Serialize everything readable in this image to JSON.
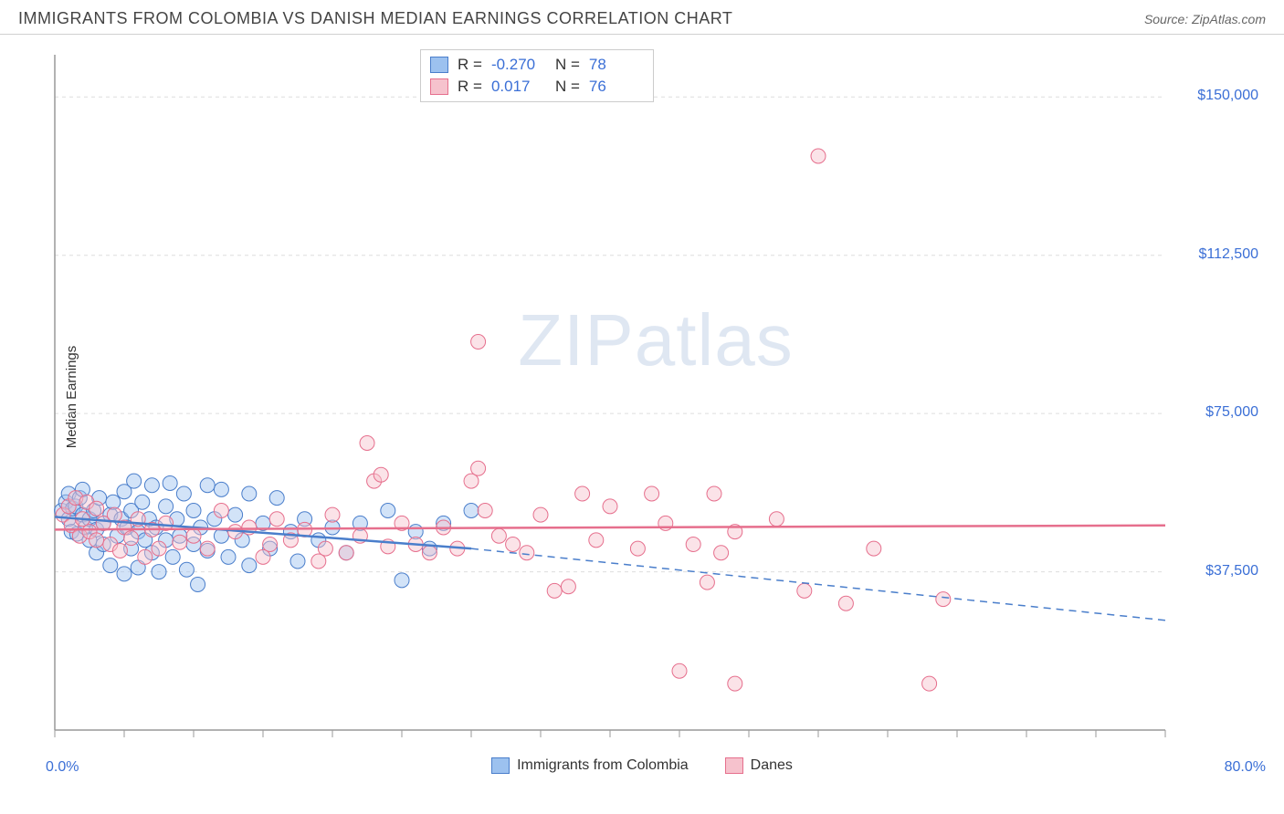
{
  "header": {
    "title": "IMMIGRANTS FROM COLOMBIA VS DANISH MEDIAN EARNINGS CORRELATION CHART",
    "source": "Source: ZipAtlas.com"
  },
  "watermark": {
    "zip": "ZIP",
    "atlas": "atlas"
  },
  "chart": {
    "type": "scatter",
    "ylabel": "Median Earnings",
    "background_color": "#ffffff",
    "grid_color": "#dddddd",
    "axis_color": "#999999",
    "label_color": "#3b6fd6",
    "xlim": [
      0,
      80
    ],
    "ylim": [
      0,
      160000
    ],
    "x_tick_step": 5,
    "x_labels": {
      "min": "0.0%",
      "max": "80.0%"
    },
    "y_ticks": [
      {
        "v": 37500,
        "label": "$37,500"
      },
      {
        "v": 75000,
        "label": "$75,000"
      },
      {
        "v": 112500,
        "label": "$112,500"
      },
      {
        "v": 150000,
        "label": "$150,000"
      }
    ],
    "marker_radius": 8,
    "marker_opacity": 0.45,
    "top_legend": {
      "rows": [
        {
          "swatch_fill": "#9cc1ef",
          "swatch_stroke": "#4a7ecb",
          "r_label": "R =",
          "r_value": "-0.270",
          "n_label": "N =",
          "n_value": "78"
        },
        {
          "swatch_fill": "#f6c2cd",
          "swatch_stroke": "#e66f8d",
          "r_label": "R =",
          "r_value": " 0.017",
          "n_label": "N =",
          "n_value": "76"
        }
      ]
    },
    "bottom_legend": {
      "items": [
        {
          "label": "Immigrants from Colombia",
          "fill": "#9cc1ef",
          "stroke": "#4a7ecb"
        },
        {
          "label": "Danes",
          "fill": "#f6c2cd",
          "stroke": "#e66f8d"
        }
      ]
    },
    "series": [
      {
        "name": "Immigrants from Colombia",
        "color_fill": "#9cc1ef",
        "color_stroke": "#4a7ecb",
        "trend": {
          "solid_to_x": 30,
          "y_start": 50500,
          "y_at_solid_end": 43000,
          "y_end": 26000,
          "width": 2.5
        },
        "points": [
          [
            0.5,
            52000
          ],
          [
            0.8,
            54000
          ],
          [
            1,
            50000
          ],
          [
            1,
            56000
          ],
          [
            1.2,
            47000
          ],
          [
            1.3,
            52500
          ],
          [
            1.5,
            53000
          ],
          [
            1.6,
            46500
          ],
          [
            1.8,
            55000
          ],
          [
            2,
            51000
          ],
          [
            2,
            57000
          ],
          [
            2.2,
            48000
          ],
          [
            2.5,
            45000
          ],
          [
            2.5,
            50000
          ],
          [
            2.8,
            52000
          ],
          [
            3,
            47500
          ],
          [
            3,
            42000
          ],
          [
            3.2,
            55000
          ],
          [
            3.5,
            49000
          ],
          [
            3.5,
            44000
          ],
          [
            4,
            51000
          ],
          [
            4,
            39000
          ],
          [
            4.2,
            54000
          ],
          [
            4.5,
            46000
          ],
          [
            4.8,
            50000
          ],
          [
            5,
            56500
          ],
          [
            5,
            37000
          ],
          [
            5.2,
            48000
          ],
          [
            5.5,
            52000
          ],
          [
            5.5,
            43000
          ],
          [
            5.7,
            59000
          ],
          [
            6,
            47000
          ],
          [
            6,
            38500
          ],
          [
            6.3,
            54000
          ],
          [
            6.5,
            45000
          ],
          [
            6.8,
            50000
          ],
          [
            7,
            58000
          ],
          [
            7,
            42000
          ],
          [
            7.3,
            48000
          ],
          [
            7.5,
            37500
          ],
          [
            8,
            53000
          ],
          [
            8,
            45000
          ],
          [
            8.3,
            58500
          ],
          [
            8.5,
            41000
          ],
          [
            8.8,
            50000
          ],
          [
            9,
            46000
          ],
          [
            9.3,
            56000
          ],
          [
            9.5,
            38000
          ],
          [
            10,
            52000
          ],
          [
            10,
            44000
          ],
          [
            10.3,
            34500
          ],
          [
            10.5,
            48000
          ],
          [
            11,
            58000
          ],
          [
            11,
            42500
          ],
          [
            11.5,
            50000
          ],
          [
            12,
            46000
          ],
          [
            12,
            57000
          ],
          [
            12.5,
            41000
          ],
          [
            13,
            51000
          ],
          [
            13.5,
            45000
          ],
          [
            14,
            56000
          ],
          [
            14,
            39000
          ],
          [
            15,
            49000
          ],
          [
            15.5,
            43000
          ],
          [
            16,
            55000
          ],
          [
            17,
            47000
          ],
          [
            17.5,
            40000
          ],
          [
            18,
            50000
          ],
          [
            19,
            45000
          ],
          [
            20,
            48000
          ],
          [
            21,
            42000
          ],
          [
            22,
            49000
          ],
          [
            24,
            52000
          ],
          [
            25,
            35500
          ],
          [
            26,
            47000
          ],
          [
            27,
            43000
          ],
          [
            28,
            49000
          ],
          [
            30,
            52000
          ]
        ]
      },
      {
        "name": "Danes",
        "color_fill": "#f6c2cd",
        "color_stroke": "#e66f8d",
        "trend": {
          "solid_to_x": 80,
          "y_start": 47500,
          "y_at_solid_end": 48500,
          "y_end": 48500,
          "width": 2.5
        },
        "points": [
          [
            0.6,
            51000
          ],
          [
            1,
            53000
          ],
          [
            1.2,
            48500
          ],
          [
            1.5,
            55000
          ],
          [
            1.8,
            46000
          ],
          [
            2,
            50000
          ],
          [
            2.3,
            54000
          ],
          [
            2.5,
            47000
          ],
          [
            3,
            45000
          ],
          [
            3,
            52500
          ],
          [
            3.5,
            49000
          ],
          [
            4,
            44000
          ],
          [
            4.3,
            51000
          ],
          [
            4.7,
            42500
          ],
          [
            5,
            48000
          ],
          [
            5.5,
            45500
          ],
          [
            6,
            50000
          ],
          [
            6.5,
            41000
          ],
          [
            7,
            47500
          ],
          [
            7.5,
            43000
          ],
          [
            8,
            49000
          ],
          [
            9,
            44500
          ],
          [
            10,
            46000
          ],
          [
            11,
            43000
          ],
          [
            12,
            52000
          ],
          [
            13,
            47000
          ],
          [
            14,
            48000
          ],
          [
            15,
            41000
          ],
          [
            15.5,
            44000
          ],
          [
            16,
            50000
          ],
          [
            17,
            45000
          ],
          [
            18,
            47500
          ],
          [
            19,
            40000
          ],
          [
            19.5,
            43000
          ],
          [
            20,
            51000
          ],
          [
            21,
            42000
          ],
          [
            22,
            46000
          ],
          [
            22.5,
            68000
          ],
          [
            23,
            59000
          ],
          [
            23.5,
            60500
          ],
          [
            24,
            43500
          ],
          [
            25,
            49000
          ],
          [
            26,
            44000
          ],
          [
            27,
            42000
          ],
          [
            28,
            48000
          ],
          [
            29,
            43000
          ],
          [
            30,
            59000
          ],
          [
            30.5,
            92000
          ],
          [
            30.5,
            62000
          ],
          [
            31,
            52000
          ],
          [
            32,
            46000
          ],
          [
            33,
            44000
          ],
          [
            34,
            42000
          ],
          [
            35,
            51000
          ],
          [
            36,
            33000
          ],
          [
            37,
            34000
          ],
          [
            38,
            56000
          ],
          [
            39,
            45000
          ],
          [
            40,
            53000
          ],
          [
            42,
            43000
          ],
          [
            43,
            56000
          ],
          [
            44,
            49000
          ],
          [
            45,
            14000
          ],
          [
            46,
            44000
          ],
          [
            47,
            35000
          ],
          [
            47.5,
            56000
          ],
          [
            48,
            42000
          ],
          [
            49,
            47000
          ],
          [
            49,
            11000
          ],
          [
            52,
            50000
          ],
          [
            54,
            33000
          ],
          [
            55,
            136000
          ],
          [
            57,
            30000
          ],
          [
            59,
            43000
          ],
          [
            63,
            11000
          ],
          [
            64,
            31000
          ]
        ]
      }
    ]
  }
}
